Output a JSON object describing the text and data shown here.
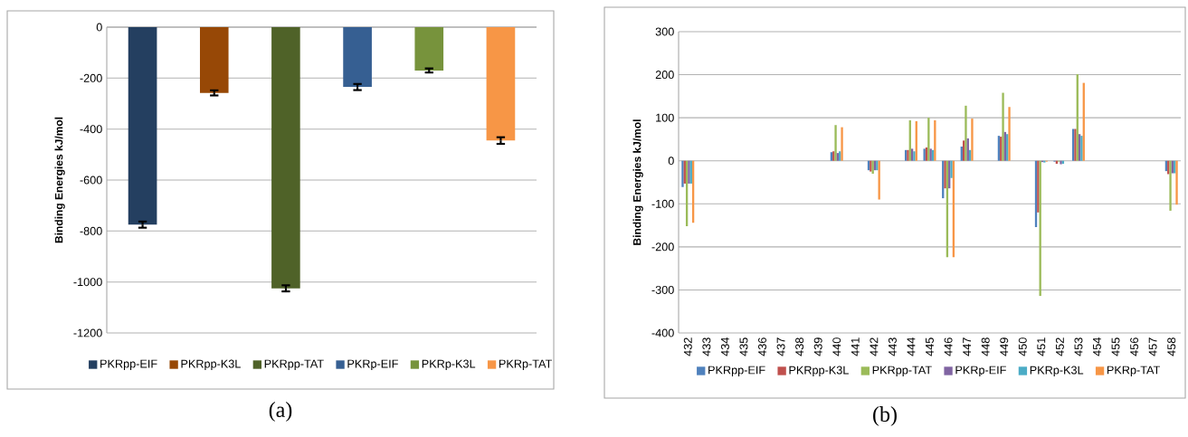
{
  "chart_data": [
    {
      "type": "bar",
      "ylabel": "Binding Energies kJ/mol",
      "categories": [
        null
      ],
      "ylim": [
        -1200,
        0
      ],
      "yticks": [
        -1200,
        -1000,
        -800,
        -600,
        -400,
        -200,
        0
      ],
      "grid": "y",
      "legend": "bottom",
      "annotations": [
        "(a)"
      ],
      "series": [
        {
          "name": "PKRpp-EIF",
          "color": "#243f60",
          "values": [
            -775
          ],
          "errors": [
            12
          ]
        },
        {
          "name": "PKRpp-K3L",
          "color": "#974806",
          "values": [
            -258
          ],
          "errors": [
            10
          ]
        },
        {
          "name": "PKRpp-TAT",
          "color": "#4f6228",
          "values": [
            -1025
          ],
          "errors": [
            12
          ]
        },
        {
          "name": "PKRp-EIF",
          "color": "#365f92",
          "values": [
            -235
          ],
          "errors": [
            12
          ]
        },
        {
          "name": "PKRp-K3L",
          "color": "#77933c",
          "values": [
            -170
          ],
          "errors": [
            8
          ]
        },
        {
          "name": "PKRp-TAT",
          "color": "#f79646",
          "values": [
            -445
          ],
          "errors": [
            13
          ]
        }
      ]
    },
    {
      "type": "bar",
      "ylabel": "Binding Energies kJ/mol",
      "categories": [
        "432",
        "433",
        "434",
        "435",
        "436",
        "437",
        "438",
        "439",
        "440",
        "441",
        "442",
        "443",
        "444",
        "445",
        "446",
        "447",
        "448",
        "449",
        "450",
        "451",
        "452",
        "453",
        "454",
        "455",
        "456",
        "457",
        "458"
      ],
      "ylim": [
        -400,
        300
      ],
      "yticks": [
        -400,
        -300,
        -200,
        -100,
        0,
        100,
        200,
        300
      ],
      "grid": "y",
      "legend": "bottom",
      "annotations": [
        "(b)"
      ],
      "series": [
        {
          "name": "PKRpp-EIF",
          "color": "#4f81bd",
          "values": [
            -61,
            null,
            null,
            null,
            null,
            null,
            null,
            null,
            20,
            null,
            -22,
            null,
            25,
            28,
            -87,
            33,
            null,
            58,
            null,
            -154,
            -2,
            74,
            null,
            null,
            null,
            null,
            -24
          ]
        },
        {
          "name": "PKRpp-K3L",
          "color": "#c0504d",
          "values": [
            -53,
            null,
            null,
            null,
            null,
            null,
            null,
            null,
            22,
            null,
            -25,
            null,
            25,
            31,
            -64,
            47,
            null,
            56,
            null,
            -120,
            -7,
            74,
            null,
            null,
            null,
            null,
            -31
          ]
        },
        {
          "name": "PKRpp-TAT",
          "color": "#9bbb59",
          "values": [
            -152,
            null,
            null,
            null,
            null,
            null,
            null,
            null,
            83,
            null,
            -30,
            null,
            94,
            100,
            -224,
            128,
            null,
            158,
            null,
            -314,
            -2,
            201,
            null,
            null,
            null,
            null,
            -116
          ]
        },
        {
          "name": "PKRp-EIF",
          "color": "#8064a2",
          "values": [
            -53,
            null,
            null,
            null,
            null,
            null,
            null,
            null,
            18,
            null,
            -22,
            null,
            28,
            28,
            -64,
            52,
            null,
            67,
            null,
            -3,
            -8,
            62,
            null,
            null,
            null,
            null,
            -29
          ]
        },
        {
          "name": "PKRp-K3L",
          "color": "#4bacc6",
          "values": [
            -53,
            null,
            null,
            null,
            null,
            null,
            null,
            null,
            22,
            null,
            -22,
            null,
            22,
            25,
            -40,
            25,
            null,
            62,
            null,
            -4,
            -7,
            58,
            null,
            null,
            null,
            null,
            -29
          ]
        },
        {
          "name": "PKRp-TAT",
          "color": "#f79646",
          "values": [
            -144,
            null,
            null,
            null,
            null,
            null,
            null,
            null,
            78,
            null,
            -90,
            null,
            92,
            94,
            -224,
            98,
            null,
            125,
            null,
            -2,
            null,
            181,
            null,
            null,
            null,
            null,
            -102
          ]
        }
      ]
    }
  ]
}
